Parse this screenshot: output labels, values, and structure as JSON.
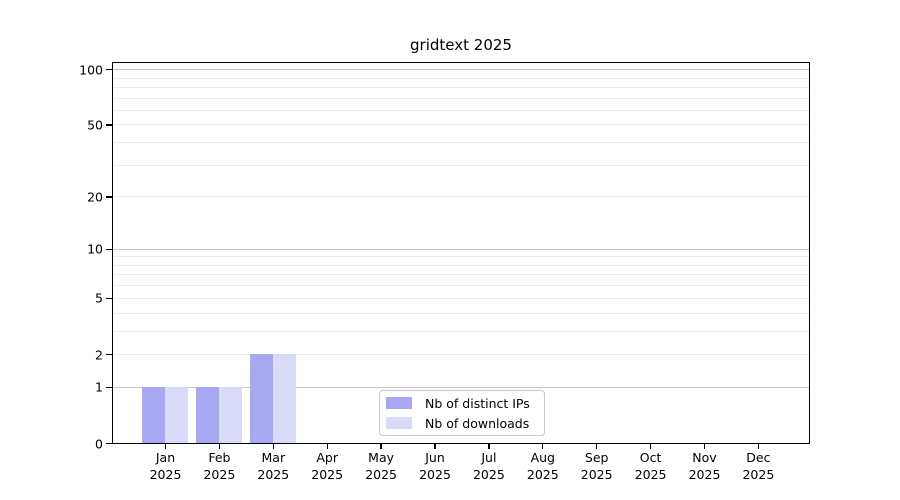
{
  "chart_data": {
    "type": "bar",
    "title": "gridtext 2025",
    "x_axis": {
      "categories": [
        "Jan",
        "Feb",
        "Mar",
        "Apr",
        "May",
        "Jun",
        "Jul",
        "Aug",
        "Sep",
        "Oct",
        "Nov",
        "Dec"
      ],
      "year_label": "2025"
    },
    "y_axis": {
      "scale": "log1p",
      "tick_values": [
        0,
        1,
        2,
        5,
        10,
        20,
        50,
        100
      ],
      "ylim": [
        0,
        110
      ],
      "grid": "horizontal"
    },
    "grid": {
      "decade_lines": [
        1,
        10,
        100
      ],
      "minor_lines": [
        2,
        3,
        4,
        5,
        6,
        7,
        8,
        9,
        20,
        30,
        40,
        50,
        60,
        70,
        80,
        90
      ]
    },
    "legend": {
      "position": "lower center"
    },
    "series": [
      {
        "name": "Nb of distinct IPs",
        "color": "#a8a8f2",
        "values": [
          1,
          1,
          2,
          0,
          0,
          0,
          0,
          0,
          0,
          0,
          0,
          0
        ]
      },
      {
        "name": "Nb of downloads",
        "color": "#d9d9f8",
        "values": [
          1,
          1,
          2,
          0,
          0,
          0,
          0,
          0,
          0,
          0,
          0,
          0
        ]
      }
    ]
  },
  "colors": {
    "background": "#ffffff",
    "spine": "#000000",
    "text": "#000000",
    "grid_decade": "#c6c6c6",
    "grid_minor": "#ececec",
    "legend_border": "#c9c9c9"
  }
}
